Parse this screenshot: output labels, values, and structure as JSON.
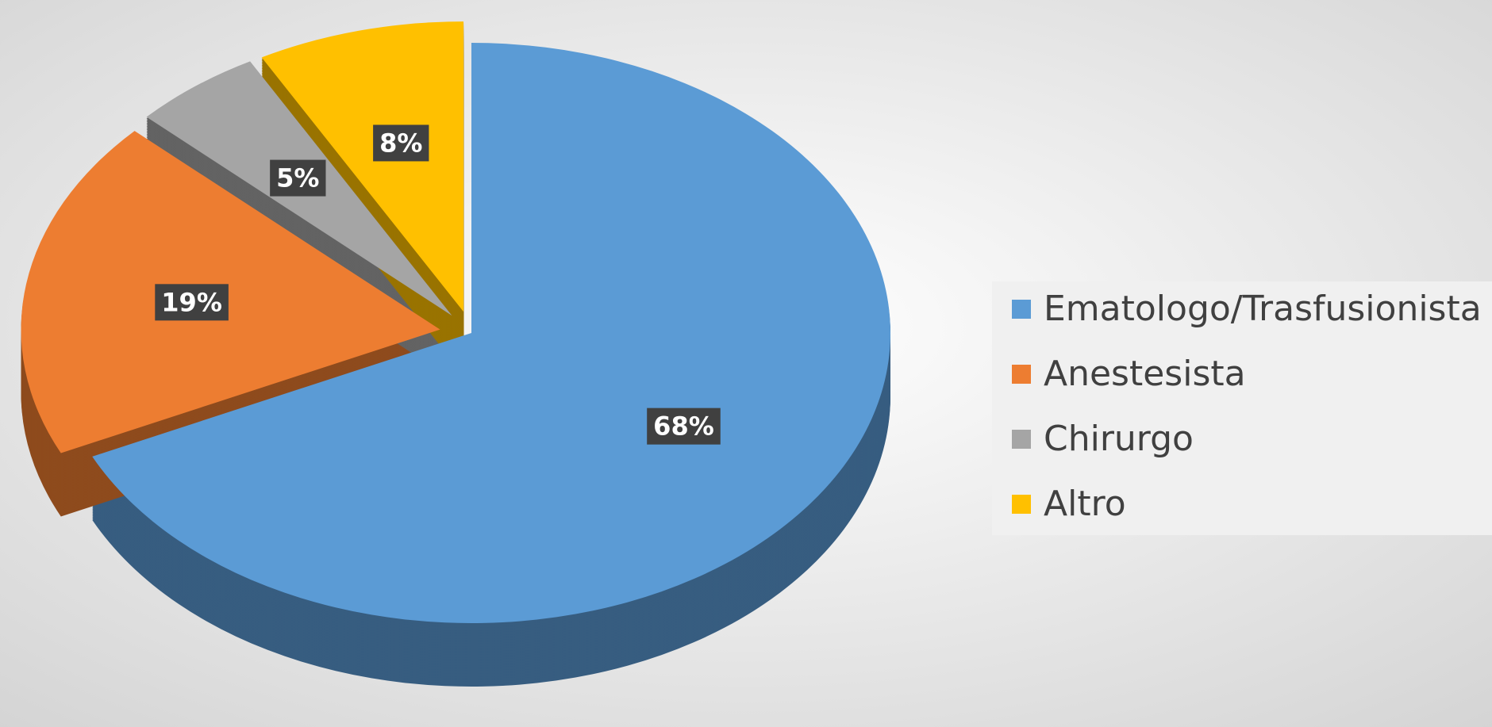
{
  "chart_data": {
    "type": "pie",
    "categories": [
      "Ematologo/Trasfusionista",
      "Anestesista",
      "Chirurgo",
      "Altro"
    ],
    "values": [
      68,
      19,
      5,
      8
    ],
    "value_labels": [
      "68%",
      "19%",
      "5%",
      "8%"
    ],
    "colors": [
      "#5b9bd5",
      "#ed7d31",
      "#a5a5a5",
      "#ffc000"
    ],
    "legend": "right"
  }
}
